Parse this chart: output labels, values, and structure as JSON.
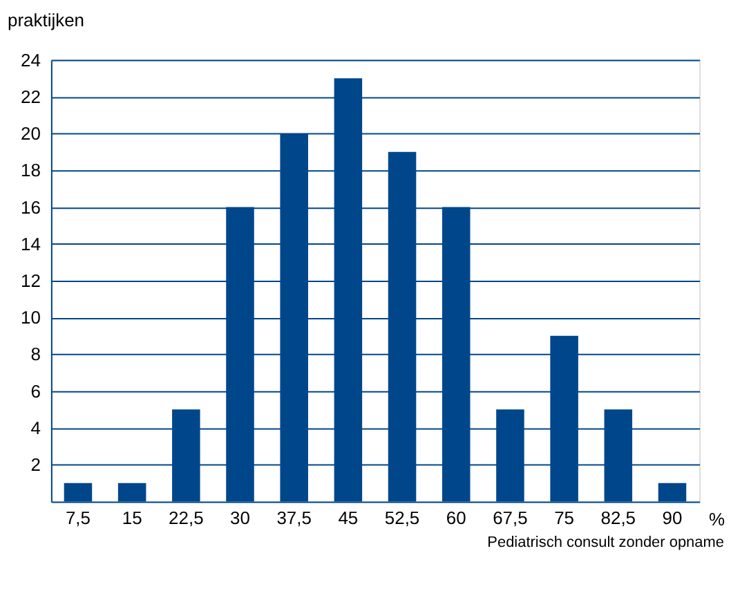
{
  "chart_data": {
    "type": "bar",
    "ylabel": "praktijken",
    "xlabel": "%",
    "categories": [
      "7,5",
      "15",
      "22,5",
      "30",
      "37,5",
      "45",
      "52,5",
      "60",
      "67,5",
      "75",
      "82,5",
      "90"
    ],
    "values": [
      1,
      1,
      5,
      16,
      20,
      23,
      19,
      16,
      5,
      9,
      5,
      1
    ],
    "color": "#00468b",
    "ylim": [
      0,
      24
    ],
    "yticks": [
      2,
      4,
      6,
      8,
      10,
      12,
      14,
      16,
      18,
      20,
      22,
      24
    ],
    "grid": "y",
    "annotations": [
      "Pediatrisch consult zonder opname"
    ]
  }
}
